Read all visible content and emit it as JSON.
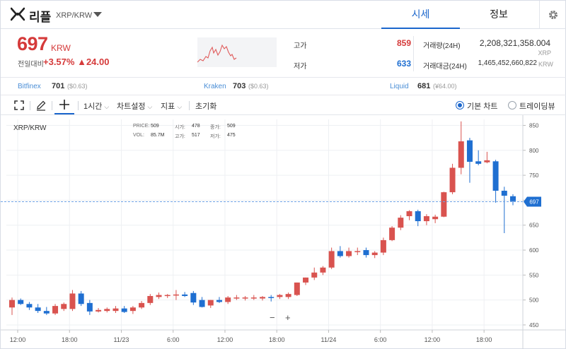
{
  "header": {
    "coin_name": "리플",
    "pair": "XRP/KRW",
    "tabs": [
      {
        "label": "시세",
        "active": true
      },
      {
        "label": "정보",
        "active": false
      }
    ]
  },
  "summary": {
    "price": "697",
    "unit": "KRW",
    "change_label": "전일대비",
    "change_pct": "+3.57%",
    "change_abs": "▲24.00",
    "high_label": "고가",
    "high": "859",
    "low_label": "저가",
    "low": "633",
    "volume_label": "거래량(24H)",
    "volume": "2,208,321,358.004",
    "volume_unit": "XRP",
    "amount_label": "거래대금(24H)",
    "amount": "1,465,452,660,822",
    "amount_unit": "KRW"
  },
  "exchanges": [
    {
      "name": "Bitfinex",
      "price": "701",
      "diff": "($0.63)"
    },
    {
      "name": "Kraken",
      "price": "703",
      "diff": "($0.63)"
    },
    {
      "name": "Liquid",
      "price": "681",
      "diff": "(¥64.00)"
    }
  ],
  "toolbar": {
    "interval": "1시간",
    "chart_settings": "차트설정",
    "indicators": "지표",
    "reset": "초기화",
    "basic_chart": "기본 차트",
    "trading_view": "트레이딩뷰",
    "basic_selected": true
  },
  "ohlc": {
    "price_label": "PRICE:",
    "price": "509",
    "open_label": "시가:",
    "open": "478",
    "close_label": "종가:",
    "close": "509",
    "vol_label": "VOL:",
    "vol": "85.7M",
    "high_label": "고가:",
    "high": "517",
    "low_label": "저가:",
    "low": "475"
  },
  "zoom": {
    "minus": "−",
    "plus": "+"
  },
  "colors": {
    "up": "#d9534f",
    "down": "#1f6fd1",
    "accent": "#1b66cc",
    "last": "#1f6fd1"
  },
  "chart_data": {
    "type": "candlestick",
    "title": "XRP/KRW",
    "y_ticks": [
      450,
      500,
      550,
      600,
      650,
      700,
      750,
      800,
      850
    ],
    "ylim": [
      440,
      862
    ],
    "x_ticks": [
      "12:00",
      "18:00",
      "11/23",
      "6:00",
      "12:00",
      "18:00",
      "11/24",
      "6:00",
      "12:00",
      "18:00"
    ],
    "last_price": 697,
    "candles": [
      {
        "o": 485,
        "h": 505,
        "l": 470,
        "c": 500
      },
      {
        "o": 500,
        "h": 503,
        "l": 490,
        "c": 492
      },
      {
        "o": 492,
        "h": 496,
        "l": 480,
        "c": 485
      },
      {
        "o": 485,
        "h": 492,
        "l": 474,
        "c": 478
      },
      {
        "o": 478,
        "h": 486,
        "l": 470,
        "c": 473
      },
      {
        "o": 473,
        "h": 492,
        "l": 470,
        "c": 488
      },
      {
        "o": 482,
        "h": 495,
        "l": 478,
        "c": 492
      },
      {
        "o": 482,
        "h": 520,
        "l": 478,
        "c": 513
      },
      {
        "o": 513,
        "h": 518,
        "l": 488,
        "c": 492
      },
      {
        "o": 494,
        "h": 500,
        "l": 470,
        "c": 477
      },
      {
        "o": 477,
        "h": 484,
        "l": 475,
        "c": 480
      },
      {
        "o": 478,
        "h": 485,
        "l": 475,
        "c": 482
      },
      {
        "o": 478,
        "h": 488,
        "l": 474,
        "c": 483
      },
      {
        "o": 483,
        "h": 488,
        "l": 474,
        "c": 476
      },
      {
        "o": 478,
        "h": 488,
        "l": 472,
        "c": 485
      },
      {
        "o": 485,
        "h": 498,
        "l": 482,
        "c": 494
      },
      {
        "o": 494,
        "h": 512,
        "l": 490,
        "c": 508
      },
      {
        "o": 506,
        "h": 515,
        "l": 502,
        "c": 510
      },
      {
        "o": 508,
        "h": 512,
        "l": 504,
        "c": 510
      },
      {
        "o": 510,
        "h": 520,
        "l": 500,
        "c": 511
      },
      {
        "o": 511,
        "h": 516,
        "l": 506,
        "c": 508
      },
      {
        "o": 514,
        "h": 518,
        "l": 490,
        "c": 495
      },
      {
        "o": 500,
        "h": 506,
        "l": 485,
        "c": 486
      },
      {
        "o": 489,
        "h": 500,
        "l": 484,
        "c": 500
      },
      {
        "o": 500,
        "h": 506,
        "l": 494,
        "c": 496
      },
      {
        "o": 496,
        "h": 508,
        "l": 492,
        "c": 505
      },
      {
        "o": 505,
        "h": 510,
        "l": 500,
        "c": 505
      },
      {
        "o": 503,
        "h": 508,
        "l": 499,
        "c": 505
      },
      {
        "o": 505,
        "h": 510,
        "l": 500,
        "c": 505
      },
      {
        "o": 503,
        "h": 508,
        "l": 499,
        "c": 506
      },
      {
        "o": 506,
        "h": 510,
        "l": 497,
        "c": 505
      },
      {
        "o": 506,
        "h": 512,
        "l": 502,
        "c": 510
      },
      {
        "o": 506,
        "h": 515,
        "l": 502,
        "c": 512
      },
      {
        "o": 510,
        "h": 535,
        "l": 508,
        "c": 535
      },
      {
        "o": 535,
        "h": 545,
        "l": 530,
        "c": 545
      },
      {
        "o": 545,
        "h": 565,
        "l": 540,
        "c": 555
      },
      {
        "o": 555,
        "h": 568,
        "l": 550,
        "c": 565
      },
      {
        "o": 565,
        "h": 605,
        "l": 562,
        "c": 598
      },
      {
        "o": 598,
        "h": 608,
        "l": 585,
        "c": 588
      },
      {
        "o": 588,
        "h": 605,
        "l": 585,
        "c": 598
      },
      {
        "o": 598,
        "h": 605,
        "l": 590,
        "c": 598
      },
      {
        "o": 600,
        "h": 605,
        "l": 585,
        "c": 590
      },
      {
        "o": 590,
        "h": 598,
        "l": 584,
        "c": 595
      },
      {
        "o": 595,
        "h": 625,
        "l": 590,
        "c": 620
      },
      {
        "o": 620,
        "h": 648,
        "l": 618,
        "c": 645
      },
      {
        "o": 645,
        "h": 670,
        "l": 640,
        "c": 665
      },
      {
        "o": 668,
        "h": 680,
        "l": 660,
        "c": 678
      },
      {
        "o": 678,
        "h": 681,
        "l": 648,
        "c": 658
      },
      {
        "o": 658,
        "h": 672,
        "l": 650,
        "c": 668
      },
      {
        "o": 662,
        "h": 671,
        "l": 654,
        "c": 667
      },
      {
        "o": 667,
        "h": 717,
        "l": 666,
        "c": 716
      },
      {
        "o": 716,
        "h": 773,
        "l": 712,
        "c": 765
      },
      {
        "o": 765,
        "h": 858,
        "l": 752,
        "c": 818
      },
      {
        "o": 820,
        "h": 825,
        "l": 735,
        "c": 777
      },
      {
        "o": 778,
        "h": 800,
        "l": 770,
        "c": 773
      },
      {
        "o": 776,
        "h": 797,
        "l": 774,
        "c": 780
      },
      {
        "o": 778,
        "h": 781,
        "l": 695,
        "c": 719
      },
      {
        "o": 719,
        "h": 727,
        "l": 634,
        "c": 709
      },
      {
        "o": 708,
        "h": 712,
        "l": 690,
        "c": 698
      }
    ]
  }
}
